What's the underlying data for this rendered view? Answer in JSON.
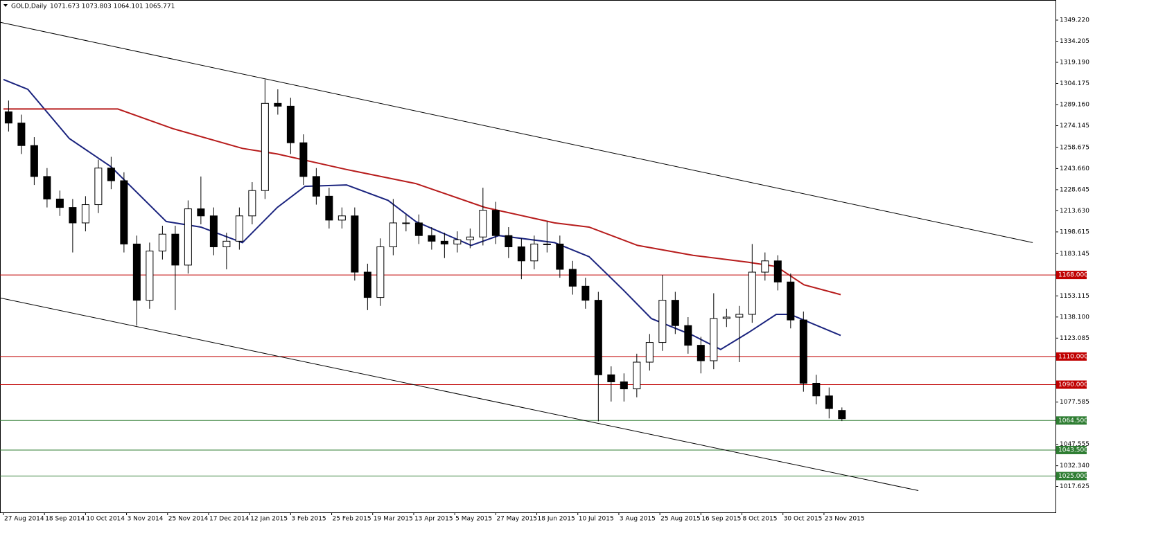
{
  "chart_data": {
    "type": "candlestick",
    "title": "GOLD,Daily",
    "quote": "1071.673 1073.803 1064.101 1065.771",
    "xlim": [
      -1.35,
      410.3
    ],
    "ylim": [
      999.17,
      1363.51
    ],
    "xticks": [
      {
        "value": 0,
        "label": "27 Aug 2014"
      },
      {
        "value": 16,
        "label": "18 Sep 2014"
      },
      {
        "value": 32,
        "label": "10 Oct 2014"
      },
      {
        "value": 48,
        "label": "3 Nov 2014"
      },
      {
        "value": 64,
        "label": "25 Nov 2014"
      },
      {
        "value": 80,
        "label": "17 Dec 2014"
      },
      {
        "value": 96,
        "label": "12 Jan 2015"
      },
      {
        "value": 112,
        "label": "3 Feb 2015"
      },
      {
        "value": 128,
        "label": "25 Feb 2015"
      },
      {
        "value": 144,
        "label": "19 Mar 2015"
      },
      {
        "value": 160,
        "label": "13 Apr 2015"
      },
      {
        "value": 176,
        "label": "5 May 2015"
      },
      {
        "value": 192,
        "label": "27 May 2015"
      },
      {
        "value": 208,
        "label": "18 Jun 2015"
      },
      {
        "value": 224,
        "label": "10 Jul 2015"
      },
      {
        "value": 240,
        "label": "3 Aug 2015"
      },
      {
        "value": 256,
        "label": "25 Aug 2015"
      },
      {
        "value": 272,
        "label": "16 Sep 2015"
      },
      {
        "value": 288,
        "label": "8 Oct 2015"
      },
      {
        "value": 304,
        "label": "30 Oct 2015"
      },
      {
        "value": 320,
        "label": "23 Nov 2015"
      }
    ],
    "yticks": [
      {
        "value": 1349.22,
        "label": "1349.220"
      },
      {
        "value": 1334.205,
        "label": "1334.205"
      },
      {
        "value": 1319.19,
        "label": "1319.190"
      },
      {
        "value": 1304.175,
        "label": "1304.175"
      },
      {
        "value": 1289.16,
        "label": "1289.160"
      },
      {
        "value": 1274.145,
        "label": "1274.145"
      },
      {
        "value": 1258.675,
        "label": "1258.675"
      },
      {
        "value": 1243.66,
        "label": "1243.660"
      },
      {
        "value": 1228.645,
        "label": "1228.645"
      },
      {
        "value": 1213.63,
        "label": "1213.630"
      },
      {
        "value": 1198.615,
        "label": "1198.615"
      },
      {
        "value": 1183.145,
        "label": "1183.145"
      },
      {
        "value": 1153.115,
        "label": "1153.115"
      },
      {
        "value": 1138.1,
        "label": "1138.100"
      },
      {
        "value": 1123.085,
        "label": "1123.085"
      },
      {
        "value": 1077.585,
        "label": "1077.585"
      },
      {
        "value": 1047.555,
        "label": "1047.555"
      },
      {
        "value": 1032.34,
        "label": "1032.340"
      },
      {
        "value": 1017.625,
        "label": "1017.625"
      }
    ],
    "x": [
      2,
      7,
      12,
      17,
      22,
      27,
      32,
      37,
      42,
      47,
      52,
      57,
      62,
      67,
      72,
      77,
      82,
      87,
      92,
      97,
      102,
      107,
      112,
      117,
      122,
      127,
      132,
      137,
      142,
      147,
      152,
      157,
      162,
      167,
      172,
      177,
      182,
      187,
      192,
      197,
      202,
      207,
      212,
      217,
      222,
      227,
      232,
      237,
      242,
      247,
      252,
      257,
      262,
      267,
      272,
      277,
      282,
      287,
      292,
      297,
      302,
      307,
      312,
      317,
      322,
      327
    ],
    "open": [
      1284,
      1276,
      1260,
      1238,
      1222,
      1216,
      1205,
      1218,
      1244,
      1235,
      1190,
      1150,
      1185,
      1197,
      1175,
      1215,
      1210,
      1188,
      1192,
      1210,
      1228,
      1290,
      1288,
      1262,
      1238,
      1224,
      1207,
      1210,
      1170,
      1152,
      1188,
      1205,
      1205,
      1196,
      1192,
      1190,
      1193,
      1195,
      1214,
      1196,
      1188,
      1178,
      1190,
      1190,
      1172,
      1160,
      1150,
      1097,
      1092,
      1087,
      1106,
      1120,
      1150,
      1132,
      1118,
      1107,
      1137,
      1138,
      1140,
      1170,
      1178,
      1163,
      1136,
      1091,
      1082,
      1071.673
    ],
    "high": [
      1292,
      1282,
      1266,
      1244,
      1228,
      1222,
      1224,
      1250,
      1252,
      1241,
      1196,
      1191,
      1203,
      1203,
      1221,
      1238,
      1216,
      1198,
      1216,
      1234,
      1307,
      1300,
      1294,
      1268,
      1244,
      1230,
      1216,
      1216,
      1176,
      1194,
      1222,
      1211,
      1211,
      1202,
      1198,
      1199,
      1201,
      1230,
      1220,
      1202,
      1194,
      1196,
      1206,
      1196,
      1178,
      1166,
      1156,
      1103,
      1098,
      1112,
      1126,
      1168,
      1156,
      1138,
      1124,
      1155,
      1144,
      1146,
      1190,
      1184,
      1182,
      1169,
      1142,
      1097,
      1088,
      1073.803
    ],
    "low": [
      1270,
      1254,
      1232,
      1216,
      1210,
      1184,
      1199,
      1212,
      1229,
      1184,
      1132,
      1144,
      1179,
      1143,
      1169,
      1204,
      1182,
      1172,
      1186,
      1204,
      1222,
      1282,
      1254,
      1232,
      1218,
      1201,
      1201,
      1164,
      1143,
      1146,
      1182,
      1199,
      1190,
      1186,
      1180,
      1184,
      1187,
      1189,
      1190,
      1180,
      1165,
      1172,
      1184,
      1166,
      1154,
      1144,
      1064,
      1078,
      1078,
      1081,
      1100,
      1114,
      1126,
      1112,
      1098,
      1101,
      1131,
      1106,
      1134,
      1164,
      1157,
      1130,
      1085,
      1076,
      1066,
      1064.101
    ],
    "close": [
      1276,
      1260,
      1238,
      1222,
      1216,
      1205,
      1218,
      1244,
      1235,
      1190,
      1150,
      1185,
      1197,
      1175,
      1215,
      1210,
      1188,
      1192,
      1210,
      1228,
      1290,
      1288,
      1262,
      1238,
      1224,
      1207,
      1210,
      1170,
      1152,
      1188,
      1205,
      1205,
      1196,
      1192,
      1190,
      1193,
      1195,
      1214,
      1196,
      1188,
      1178,
      1190,
      1190,
      1172,
      1160,
      1150,
      1097,
      1092,
      1087,
      1106,
      1120,
      1150,
      1132,
      1118,
      1107,
      1137,
      1138,
      1140,
      1170,
      1178,
      1163,
      1136,
      1091,
      1082,
      1073,
      1065.771
    ],
    "moving_averages": [
      {
        "color": "#1a237e",
        "x": [
          0,
          9.5,
          25.7,
          41.9,
          63.5,
          77,
          93.2,
          106.8,
          117.6,
          133.8,
          150,
          160.8,
          182.4,
          193.2,
          214.9,
          228.4,
          241.9,
          252.7,
          268.9,
          279.7,
          290.5,
          301.4,
          306.8,
          326.5
        ],
        "values": [
          1307,
          1300,
          1265,
          1245,
          1206,
          1202,
          1191,
          1216,
          1231,
          1232,
          1221,
          1206,
          1189,
          1196,
          1191,
          1181,
          1157,
          1137,
          1125,
          1115,
          1127,
          1140,
          1140,
          1125
        ]
      },
      {
        "color": "#b71c1c",
        "x": [
          0,
          44.6,
          66.2,
          93.2,
          106.8,
          133.8,
          160.8,
          187.8,
          214.9,
          228.4,
          247.3,
          268.9,
          290.5,
          301.4,
          312.2,
          326.5
        ],
        "values": [
          1286,
          1286,
          1272,
          1258,
          1254,
          1243,
          1233,
          1216,
          1205,
          1202,
          1189,
          1182,
          1177,
          1174,
          1161,
          1154
        ]
      }
    ],
    "trendlines": [
      {
        "color": "#000000",
        "x": [
          -1.35,
          401.4
        ],
        "values": [
          1347.7,
          1191
        ]
      },
      {
        "color": "#000000",
        "x": [
          -1.35,
          356.8
        ],
        "values": [
          1151.7,
          1014.7
        ]
      }
    ],
    "levels": [
      {
        "value": 1168,
        "label": "1168.000",
        "color": "#c00000"
      },
      {
        "value": 1110,
        "label": "1110.000",
        "color": "#c00000"
      },
      {
        "value": 1090,
        "label": "1090.000",
        "color": "#c00000"
      },
      {
        "value": 1064.5,
        "label": "1064.500",
        "color": "#2e7d32"
      },
      {
        "value": 1043.5,
        "label": "1043.500",
        "color": "#2e7d32"
      },
      {
        "value": 1025,
        "label": "1025.000",
        "color": "#2e7d32"
      }
    ]
  }
}
